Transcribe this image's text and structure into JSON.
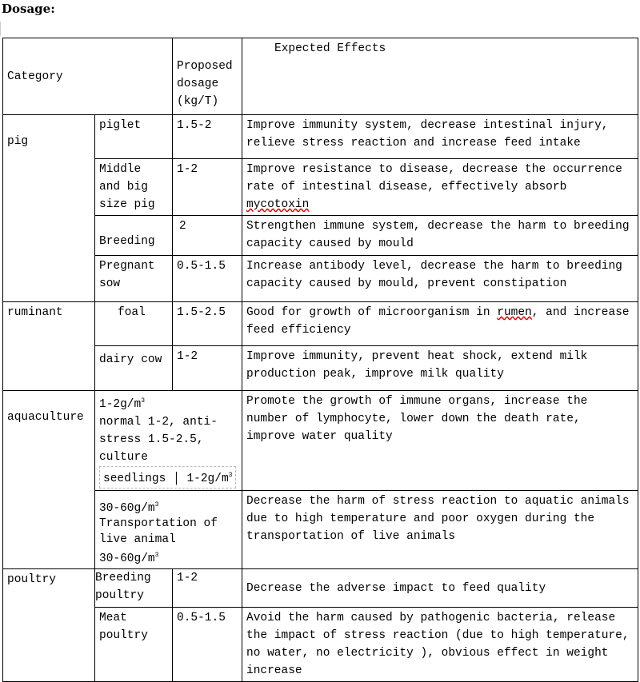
{
  "title": "Dosage:",
  "header": {
    "category": "Category",
    "dosage": "Proposed dosage (kg/T)",
    "effects": "Expected Effects"
  },
  "rows": [
    {
      "group": "pig",
      "sub": "piglet",
      "dosage": "1.5-2",
      "effects": "Improve immunity system, decrease intestinal injury, relieve stress reaction and increase feed intake"
    },
    {
      "sub": "Middle and big size pig",
      "dosage": "1-2",
      "effects": "Improve resistance to disease, decrease the occurrence rate of intestinal disease, effectively absorb ",
      "effects_tail": "mycotoxin"
    },
    {
      "sub": "Breeding",
      "dosage": "2",
      "effects": "Strengthen immune system, decrease the harm to breeding capacity caused by mould"
    },
    {
      "sub": "Pregnant sow",
      "dosage": "0.5-1.5",
      "effects": "Increase antibody level, decrease the harm to breeding capacity caused by mould, prevent constipation"
    },
    {
      "group": "ruminant",
      "sub": "foal",
      "dosage": "1.5-2.5",
      "effects": "Good for growth of microorganism in ",
      "effects_mid": "rumen",
      "effects_tail": ", and increase feed efficiency"
    },
    {
      "sub": "dairy cow",
      "dosage": "1-2",
      "effects": "Improve immunity, prevent heat shock, extend milk production peak, improve milk quality"
    },
    {
      "group": "aquaculture",
      "dosage_line1": "1-2g/m",
      "dosage_line2": "normal 1-2, anti-stress 1.5-2.5, culture",
      "seedlings": "seedlings",
      "seedlings_dose": "1-2g/m",
      "effects": "Promote the growth of immune organs, increase the number of lymphocyte, lower down the death rate, improve water quality"
    },
    {
      "dosage_line1": "30-60g/m",
      "dosage_line2": "Transportation of live animal",
      "dosage_line3": "30-60g/m",
      "effects": "Decrease the harm of stress reaction to aquatic animals due to high temperature and poor oxygen during the transportation of live animals"
    },
    {
      "group": "poultry",
      "sub": "Breeding poultry",
      "dosage": "1-2",
      "effects": "Decrease the adverse impact to feed quality"
    },
    {
      "sub": "Meat poultry",
      "dosage": "0.5-1.5",
      "effects": "Avoid the harm caused by pathogenic bacteria, release the impact of stress reaction (due to high temperature, no water, no electricity ), obvious effect in weight increase"
    }
  ],
  "superscript": "3"
}
